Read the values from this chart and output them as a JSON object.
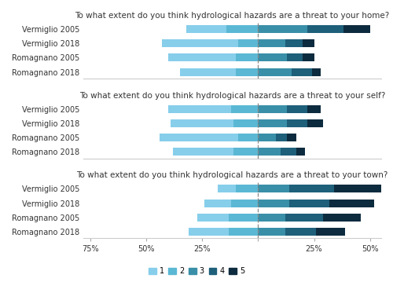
{
  "questions": [
    "To what extent do you think hydrological hazards are a threat to your home?",
    "To what extent do you think hydrological hazards are a threat to your self?",
    "To what extent do you think hydrological hazards are a threat to your town?"
  ],
  "groups": [
    "Vermiglio 2005",
    "Vermiglio 2018",
    "Romagnano 2005",
    "Romagnano 2018"
  ],
  "colors": [
    "#87CEEB",
    "#5BB8D4",
    "#3A8FA8",
    "#1E5F7A",
    "#0D2B3E"
  ],
  "legend_labels": [
    "1",
    "2",
    "3",
    "4",
    "5"
  ],
  "data": [
    [
      [
        18,
        14,
        22,
        16,
        12
      ],
      [
        34,
        9,
        12,
        8,
        5
      ],
      [
        30,
        10,
        13,
        7,
        5
      ],
      [
        25,
        10,
        15,
        9,
        4
      ]
    ],
    [
      [
        28,
        12,
        13,
        9,
        6
      ],
      [
        28,
        11,
        13,
        9,
        7
      ],
      [
        35,
        9,
        8,
        5,
        4
      ],
      [
        27,
        11,
        10,
        7,
        4
      ]
    ],
    [
      [
        8,
        10,
        14,
        20,
        25
      ],
      [
        12,
        12,
        14,
        18,
        20
      ],
      [
        14,
        13,
        12,
        17,
        17
      ],
      [
        18,
        13,
        12,
        14,
        13
      ]
    ]
  ],
  "xlim": [
    -78,
    55
  ],
  "xticks": [
    -75,
    -50,
    -25,
    0,
    25,
    50
  ],
  "xticklabels": [
    "75%",
    "50%",
    "25%",
    "",
    "25%",
    "50%"
  ],
  "vline_x": 0,
  "background_color": "#ffffff",
  "title_fontsize": 7.5,
  "label_fontsize": 7,
  "tick_fontsize": 7,
  "bar_height": 0.55
}
